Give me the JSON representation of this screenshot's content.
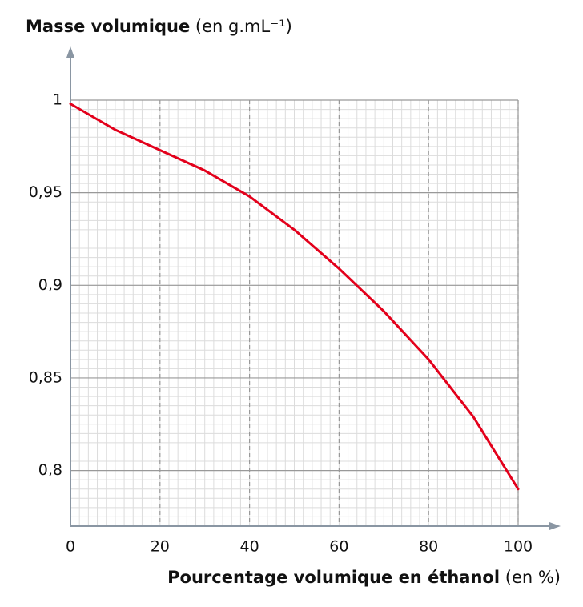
{
  "chart_data": {
    "type": "line",
    "ylabel": "Masse volumique",
    "ylabel_unit": "(en g.mL⁻¹)",
    "xlabel": "Pourcentage volumique en éthanol",
    "xlabel_unit": "(en %)",
    "x": [
      0,
      10,
      20,
      30,
      40,
      50,
      60,
      70,
      80,
      90,
      100
    ],
    "series": [
      {
        "name": "Masse volumique",
        "color": "#e3001b",
        "values": [
          0.998,
          0.984,
          0.973,
          0.962,
          0.948,
          0.93,
          0.909,
          0.886,
          0.86,
          0.829,
          0.79
        ]
      }
    ],
    "xlim": [
      0,
      100
    ],
    "ylim": [
      0.77,
      1
    ],
    "xticks": [
      0,
      20,
      40,
      60,
      80,
      100
    ],
    "yticks": [
      {
        "value": 0.8,
        "label": "0,8"
      },
      {
        "value": 0.85,
        "label": "0,85"
      },
      {
        "value": 0.9,
        "label": "0,9"
      },
      {
        "value": 0.95,
        "label": "0,95"
      },
      1
    ],
    "grid": true
  }
}
